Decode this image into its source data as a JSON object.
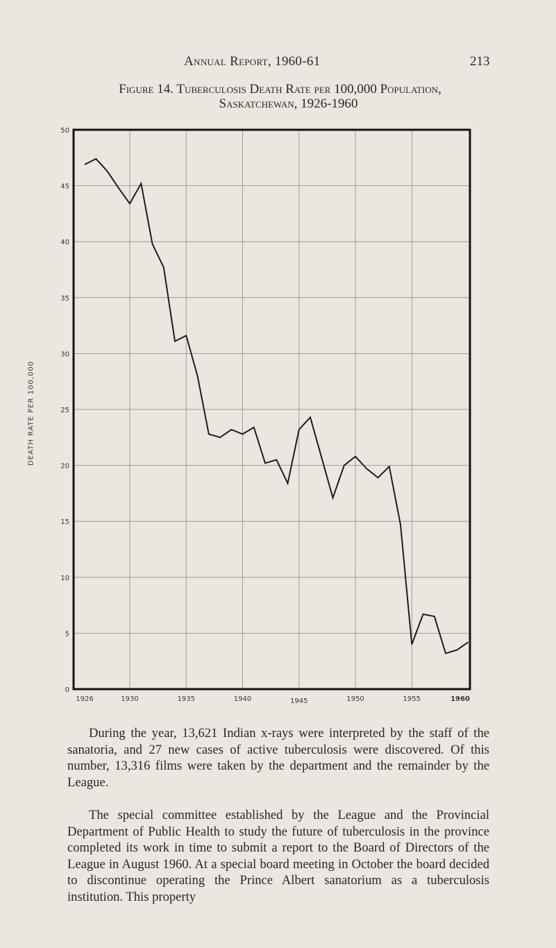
{
  "header": {
    "running_title": "Annual Report, 1960-61",
    "page_number": "213"
  },
  "figure": {
    "caption_line1": "Figure 14. Tuberculosis Death Rate per 100,000 Population,",
    "caption_line2": "Saskatchewan, 1926-1960"
  },
  "chart_data": {
    "type": "line",
    "title": "Figure 14. Tuberculosis Death Rate per 100,000 Population, Saskatchewan, 1926-1960",
    "xlabel": "",
    "ylabel": "DEATH RATE PER 100,000",
    "x_tick_labels": [
      "1926",
      "1930",
      "1935",
      "1940",
      "1945",
      "1950",
      "1955",
      "1960"
    ],
    "y_tick_labels": [
      "0",
      "5",
      "10",
      "15",
      "20",
      "25",
      "30",
      "35",
      "40",
      "45",
      "50"
    ],
    "xlim": [
      1925,
      1960
    ],
    "ylim": [
      0,
      50
    ],
    "grid": true,
    "legend": null,
    "x": [
      1926,
      1927,
      1928,
      1929,
      1930,
      1931,
      1932,
      1933,
      1934,
      1935,
      1936,
      1937,
      1938,
      1939,
      1940,
      1941,
      1942,
      1943,
      1944,
      1945,
      1946,
      1947,
      1948,
      1949,
      1950,
      1951,
      1952,
      1953,
      1954,
      1955,
      1956,
      1957,
      1958,
      1959,
      1960
    ],
    "series": [
      {
        "name": "Tuberculosis death rate per 100,000",
        "values": [
          46.9,
          47.4,
          46.3,
          44.8,
          43.4,
          45.2,
          39.8,
          37.7,
          31.1,
          31.6,
          28.0,
          22.8,
          22.5,
          23.2,
          22.8,
          23.4,
          20.2,
          20.5,
          18.4,
          23.2,
          24.3,
          20.7,
          17.1,
          20.0,
          20.8,
          19.7,
          18.9,
          19.9,
          14.7,
          4.0,
          6.7,
          6.5,
          3.2,
          3.5,
          4.2
        ]
      }
    ]
  },
  "body": {
    "paragraph1": "During the year, 13,621 Indian x-rays were interpreted by the staff of the sanatoria, and 27 new cases of active tuberculosis were discovered. Of this number, 13,316 films were taken by the department and the remainder by the League.",
    "paragraph2": "The special committee established by the League and the Provincial Department of Public Health to study the future of tuberculosis in the province completed its work in time to submit a report to the Board of Directors of the League in August 1960. At a special board meeting in October the board decided to discontinue operating the Prince Albert sanatorium as a tuberculosis institution. This property"
  }
}
